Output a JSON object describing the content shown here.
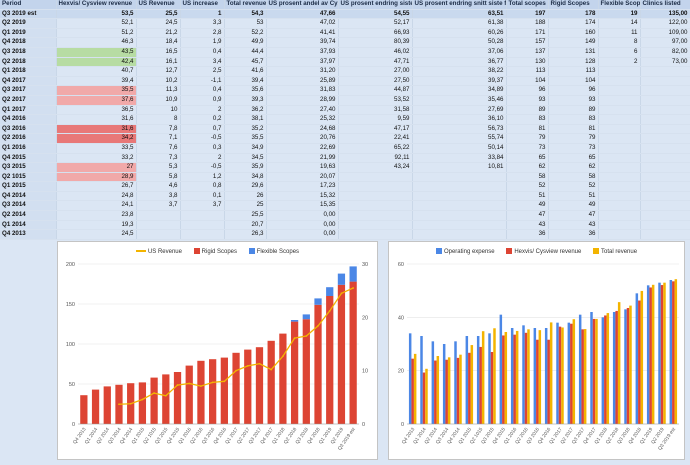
{
  "sheet": {
    "headers": [
      "Period",
      "Hexvis/ Cysview revenue",
      "US Revenue",
      "US increase",
      "Total revenue",
      "US prosent andel av Cys",
      "US prosent endring siste år",
      "US prosent endring snitt siste fire",
      "Total scopes",
      "Rigid Scopes",
      "Flexible Scopes",
      "Clinics listed"
    ],
    "rows": [
      [
        "Q3 2019 est",
        "53,5",
        "25,5",
        "1",
        "54,3",
        "47,66",
        "54,55",
        "63,51",
        "197",
        "178",
        "19",
        "135,00"
      ],
      [
        "Q2 2019",
        "52,1",
        "24,5",
        "3,3",
        "53",
        "47,02",
        "52,17",
        "61,38",
        "188",
        "174",
        "14",
        "122,00"
      ],
      [
        "Q1 2019",
        "51,2",
        "21,2",
        "2,8",
        "52,2",
        "41,41",
        "66,93",
        "60,26",
        "171",
        "160",
        "11",
        "109,00"
      ],
      [
        "Q4 2018",
        "46,3",
        "18,4",
        "1,9",
        "49,9",
        "39,74",
        "80,39",
        "50,28",
        "157",
        "149",
        "8",
        "97,00"
      ],
      [
        "Q3 2018",
        "43,5",
        "16,5",
        "0,4",
        "44,4",
        "37,93",
        "46,02",
        "37,06",
        "137",
        "131",
        "6",
        "82,00"
      ],
      [
        "Q2 2018",
        "42,4",
        "16,1",
        "3,4",
        "45,7",
        "37,97",
        "47,71",
        "36,77",
        "130",
        "128",
        "2",
        "73,00"
      ],
      [
        "Q1 2018",
        "40,7",
        "12,7",
        "2,5",
        "41,6",
        "31,20",
        "27,00",
        "38,22",
        "113",
        "113",
        "",
        ""
      ],
      [
        "Q4 2017",
        "39,4",
        "10,2",
        "-1,1",
        "39,4",
        "25,89",
        "27,50",
        "39,37",
        "104",
        "104",
        "",
        ""
      ],
      [
        "Q3 2017",
        "35,5",
        "11,3",
        "0,4",
        "35,6",
        "31,83",
        "44,87",
        "34,89",
        "96",
        "96",
        "",
        ""
      ],
      [
        "Q2 2017",
        "37,6",
        "10,9",
        "0,9",
        "39,3",
        "28,99",
        "53,52",
        "35,46",
        "93",
        "93",
        "",
        ""
      ],
      [
        "Q1 2017",
        "36,5",
        "10",
        "2",
        "36,2",
        "27,40",
        "31,58",
        "27,69",
        "89",
        "89",
        "",
        ""
      ],
      [
        "Q4 2016",
        "31,6",
        "8",
        "0,2",
        "38,1",
        "25,32",
        "9,59",
        "36,10",
        "83",
        "83",
        "",
        ""
      ],
      [
        "Q3 2016",
        "31,6",
        "7,8",
        "0,7",
        "35,2",
        "24,68",
        "47,17",
        "56,73",
        "81",
        "81",
        "",
        ""
      ],
      [
        "Q2 2016",
        "34,2",
        "7,1",
        "-0,5",
        "35,5",
        "20,76",
        "22,41",
        "55,74",
        "79",
        "79",
        "",
        ""
      ],
      [
        "Q1 2016",
        "33,5",
        "7,6",
        "0,3",
        "34,9",
        "22,69",
        "65,22",
        "50,14",
        "73",
        "73",
        "",
        ""
      ],
      [
        "Q4 2015",
        "33,2",
        "7,3",
        "2",
        "34,5",
        "21,99",
        "92,11",
        "33,84",
        "65",
        "65",
        "",
        ""
      ],
      [
        "Q3 2015",
        "27",
        "5,3",
        "-0,5",
        "35,9",
        "19,63",
        "43,24",
        "10,81",
        "62",
        "62",
        "",
        ""
      ],
      [
        "Q2 1015",
        "28,9",
        "5,8",
        "1,2",
        "34,8",
        "20,07",
        "",
        "",
        "58",
        "58",
        "",
        ""
      ],
      [
        "Q1 2015",
        "26,7",
        "4,6",
        "0,8",
        "29,6",
        "17,23",
        "",
        "",
        "52",
        "52",
        "",
        ""
      ],
      [
        "Q4 2014",
        "24,8",
        "3,8",
        "0,1",
        "26",
        "15,32",
        "",
        "",
        "51",
        "51",
        "",
        ""
      ],
      [
        "Q3 2014",
        "24,1",
        "3,7",
        "3,7",
        "25",
        "15,35",
        "",
        "",
        "49",
        "49",
        "",
        ""
      ],
      [
        "Q2 2014",
        "23,8",
        "",
        "",
        "25,5",
        "0,00",
        "",
        "",
        "47",
        "47",
        "",
        ""
      ],
      [
        "Q1 2014",
        "19,3",
        "",
        "",
        "20,7",
        "0,00",
        "",
        "",
        "43",
        "43",
        "",
        ""
      ],
      [
        "Q4 2013",
        "24,5",
        "",
        "",
        "26,3",
        "0,00",
        "",
        "",
        "36",
        "36",
        "",
        ""
      ]
    ],
    "highlights": {
      "green": [
        4,
        5
      ],
      "red_light": [
        8,
        9,
        16,
        17
      ],
      "red_dark": [
        12,
        13
      ]
    }
  },
  "left_chart": {
    "legend": [
      "US Revenue",
      "Rigid Scopes",
      "Flexible Scopes"
    ]
  },
  "right_chart": {
    "legend": [
      "Operating expense",
      "Hexvis/ Cysview revenue",
      "Total revenue"
    ]
  },
  "colors": {
    "rigid": "#dd4433",
    "flexible": "#4b87e6",
    "us_revenue": "#f3b400",
    "operating_expense": "#4b87e6",
    "hexvis": "#dd4433",
    "total": "#f3b400"
  },
  "chart_data": [
    {
      "type": "bar",
      "categories": [
        "Q4 2013",
        "Q1 2014",
        "Q2 2014",
        "Q3 2014",
        "Q4 2014",
        "Q1 2015",
        "Q2 1015",
        "Q3 2015",
        "Q4 2015",
        "Q1 2016",
        "Q2 2016",
        "Q3 2016",
        "Q4 2016",
        "Q1 2017",
        "Q2 2017",
        "Q3 2017",
        "Q4 2017",
        "Q1 2018",
        "Q2 2018",
        "Q3 2018",
        "Q4 2018",
        "Q1 2019",
        "Q2 2019",
        "Q3 2019 est"
      ],
      "series": [
        {
          "name": "Rigid Scopes",
          "type": "bar",
          "stack": "scopes",
          "axis": "left",
          "values": [
            36,
            43,
            47,
            49,
            51,
            52,
            58,
            62,
            65,
            73,
            79,
            81,
            83,
            89,
            93,
            96,
            104,
            113,
            128,
            131,
            149,
            160,
            174,
            178
          ]
        },
        {
          "name": "Flexible Scopes",
          "type": "bar",
          "stack": "scopes",
          "axis": "left",
          "values": [
            0,
            0,
            0,
            0,
            0,
            0,
            0,
            0,
            0,
            0,
            0,
            0,
            0,
            0,
            0,
            0,
            0,
            0,
            2,
            6,
            8,
            11,
            14,
            19
          ]
        },
        {
          "name": "US Revenue",
          "type": "line",
          "axis": "right",
          "values": [
            null,
            null,
            null,
            3.7,
            3.8,
            4.6,
            5.8,
            5.3,
            7.3,
            7.6,
            7.1,
            7.8,
            8,
            10,
            10.9,
            11.3,
            10.2,
            12.7,
            16.1,
            16.5,
            18.4,
            21.2,
            24.5,
            25.5
          ]
        }
      ],
      "ylim_left": [
        0,
        200
      ],
      "yticks_left": [
        0,
        50,
        100,
        150,
        200
      ],
      "ylim_right": [
        0,
        30
      ],
      "yticks_right": [
        0,
        10,
        20,
        30
      ],
      "grid": true,
      "legend": "top"
    },
    {
      "type": "bar",
      "categories": [
        "Q4 2013",
        "Q1 2014",
        "Q2 2014",
        "Q3 2014",
        "Q4 2014",
        "Q1 2015",
        "Q2 1015",
        "Q3 2015",
        "Q4 2015",
        "Q1 2016",
        "Q2 2016",
        "Q3 2016",
        "Q4 2016",
        "Q1 2017",
        "Q2 2017",
        "Q3 2017",
        "Q4 2017",
        "Q1 2018",
        "Q2 2018",
        "Q3 2018",
        "Q4 2018",
        "Q1 2019",
        "Q2 2019",
        "Q3 2019 est"
      ],
      "series": [
        {
          "name": "Operating expense",
          "values": [
            34,
            33,
            31,
            30,
            31,
            33,
            33,
            34,
            41,
            36,
            37,
            36,
            36,
            38,
            38,
            41,
            42,
            40,
            42,
            43,
            49,
            52,
            53,
            54
          ]
        },
        {
          "name": "Hexvis/ Cysview revenue",
          "values": [
            24.5,
            19.3,
            23.8,
            24.1,
            24.8,
            26.7,
            28.9,
            27,
            33.2,
            33.5,
            34.2,
            31.6,
            31.6,
            36.5,
            37.6,
            35.5,
            39.4,
            40.7,
            42.4,
            43.5,
            46.3,
            51.2,
            52.1,
            53.5
          ]
        },
        {
          "name": "Total revenue",
          "values": [
            26.3,
            20.7,
            25.5,
            25,
            26,
            29.6,
            34.8,
            35.9,
            34.5,
            34.9,
            35.5,
            35.2,
            38.1,
            36.2,
            39.3,
            35.6,
            39.4,
            41.6,
            45.7,
            44.4,
            49.9,
            52.2,
            53,
            54.3
          ]
        }
      ],
      "ylim": [
        0,
        60
      ],
      "yticks": [
        0,
        20,
        40,
        60
      ],
      "grid": true,
      "legend": "top"
    }
  ]
}
